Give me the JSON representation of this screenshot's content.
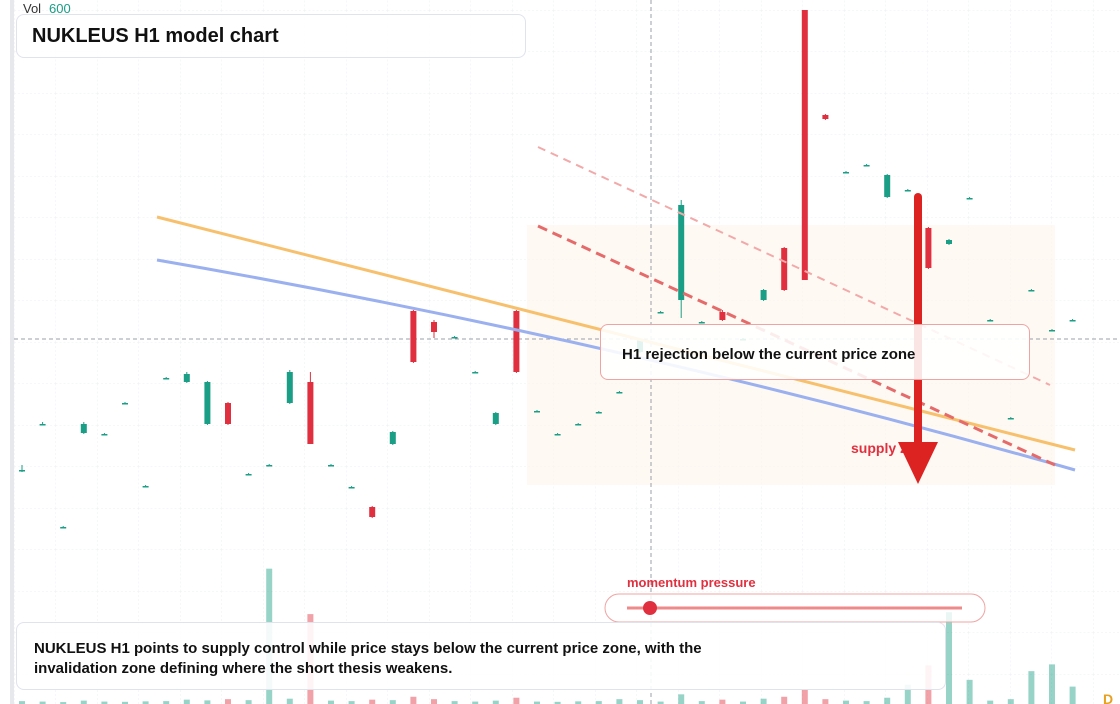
{
  "header": {
    "title": "NUKLEUS H1 model chart",
    "volume_label": "Vol",
    "volume_value": 600
  },
  "chart_data": {
    "type": "candlestick",
    "categories": [
      null,
      null,
      null,
      null,
      null,
      null,
      null,
      null,
      null,
      null,
      null,
      null,
      null,
      null,
      null,
      null,
      null,
      null,
      null,
      null,
      null,
      null,
      null,
      null,
      null,
      null,
      null,
      null,
      null,
      null,
      null,
      null,
      null,
      null,
      null,
      null,
      null,
      null,
      null,
      null,
      null,
      null,
      null,
      null,
      null,
      null,
      null,
      null,
      null,
      null,
      null,
      null
    ],
    "open": [
      18,
      27.2,
      6.6,
      25.4,
      25.2,
      31.4,
      14.8,
      36.4,
      35.6,
      27.2,
      31.4,
      17.2,
      19,
      31.4,
      35.6,
      19,
      14.6,
      10.6,
      23.2,
      49.8,
      47.6,
      44.6,
      37.6,
      27.2,
      49.8,
      29.8,
      25.2,
      27.2,
      29.6,
      33.6,
      41.6,
      49.6,
      52,
      47.6,
      49.6,
      44.2,
      52,
      62.4,
      110,
      89,
      77.6,
      79,
      72.6,
      74,
      66.4,
      63.2,
      72.4,
      48,
      28.4,
      54,
      46,
      48
    ],
    "high": [
      19,
      27.6,
      6.8,
      27.6,
      25.4,
      31.6,
      15,
      36.6,
      37.6,
      35.8,
      31.6,
      17.4,
      19.2,
      38,
      37.6,
      19.2,
      14.8,
      10.8,
      25.8,
      50,
      48,
      44.8,
      37.8,
      29.6,
      50,
      30,
      25.4,
      27.4,
      29.8,
      33.8,
      44.2,
      49.8,
      72,
      47.8,
      50,
      44.4,
      54.2,
      62.6,
      110,
      89.2,
      77.8,
      79.2,
      77.2,
      74.2,
      66.6,
      64.2,
      72.6,
      48.2,
      28.6,
      54.2,
      46.2,
      48.2
    ],
    "low": [
      17.6,
      27,
      6.4,
      25.2,
      25,
      31.2,
      14.6,
      36.2,
      35.4,
      27,
      27,
      17,
      18.8,
      31.2,
      23.2,
      18.8,
      14.4,
      8.4,
      23,
      39.4,
      44.4,
      44.4,
      37.4,
      27,
      37.4,
      29.6,
      25,
      27,
      29.4,
      33.4,
      41.4,
      49.4,
      48.4,
      47.4,
      47.8,
      44,
      51.8,
      53.8,
      56,
      88,
      77.4,
      78.8,
      72.4,
      73.8,
      58.2,
      63,
      72.2,
      47.8,
      28.2,
      53.8,
      45.8,
      47.8
    ],
    "close": [
      18,
      27.2,
      6.6,
      27.2,
      25.2,
      31.4,
      14.8,
      36.4,
      37.2,
      35.6,
      27.2,
      17.2,
      19,
      37.6,
      23.2,
      19,
      14.6,
      8.6,
      25.6,
      39.6,
      45.6,
      44.6,
      37.6,
      29.4,
      37.6,
      29.8,
      25.2,
      27.2,
      29.6,
      33.6,
      44,
      49.6,
      71,
      47.6,
      48,
      44.2,
      54,
      54,
      56,
      88.2,
      77.6,
      79,
      77,
      74,
      58.4,
      64,
      72.4,
      48,
      28.4,
      54,
      46,
      48
    ],
    "volume": [
      12,
      10,
      8,
      14,
      10,
      9,
      11,
      12,
      18,
      15,
      20,
      16,
      560,
      22,
      372,
      14,
      12,
      18,
      16,
      30,
      20,
      12,
      10,
      14,
      26,
      10,
      9,
      11,
      12,
      20,
      16,
      10,
      40,
      12,
      18,
      10,
      22,
      30,
      60,
      20,
      14,
      12,
      26,
      80,
      160,
      380,
      100,
      14,
      20,
      136,
      164,
      72
    ],
    "ylim": [
      0,
      112
    ],
    "colors": {
      "up": "#1a9e85",
      "down": "#e0303f"
    }
  },
  "annotations": {
    "rejection": "H1 rejection below the current price zone",
    "zone": "supply zone",
    "momentum": "momentum pressure"
  },
  "note": "NUKLEUS H1 points to supply control while price stays below the current price zone, with the invalidation zone defining where the short thesis weakens.",
  "badge": "D"
}
